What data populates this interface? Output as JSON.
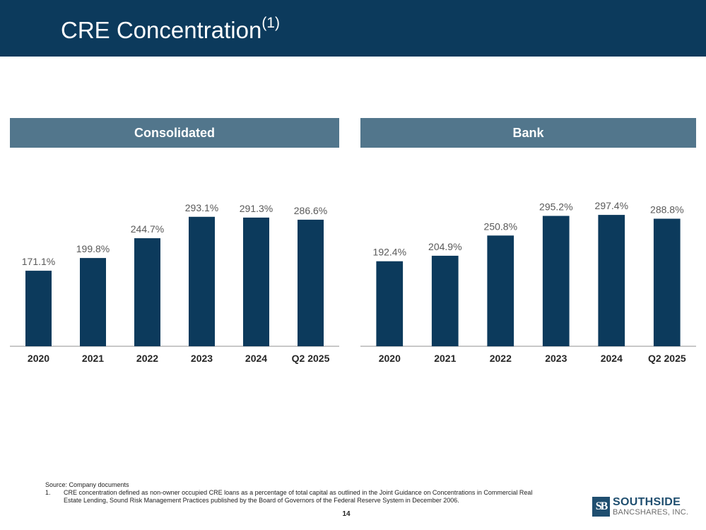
{
  "header": {
    "title": "CRE Concentration",
    "title_superscript": "(1)"
  },
  "colors": {
    "header_background": "#0c3a5c",
    "panel_header_background": "#52768c",
    "bar_fill": "#0c3a5c"
  },
  "chart_data": [
    {
      "type": "bar",
      "title": "Consolidated",
      "categories": [
        "2020",
        "2021",
        "2022",
        "2023",
        "2024",
        "Q2 2025"
      ],
      "values": [
        171.1,
        199.8,
        244.7,
        293.1,
        291.3,
        286.6
      ],
      "data_labels": [
        "171.1%",
        "199.8%",
        "244.7%",
        "293.1%",
        "291.3%",
        "286.6%"
      ],
      "ylim": [
        0,
        320
      ],
      "grid": false,
      "legend": "none"
    },
    {
      "type": "bar",
      "title": "Bank",
      "categories": [
        "2020",
        "2021",
        "2022",
        "2023",
        "2024",
        "Q2 2025"
      ],
      "values": [
        192.4,
        204.9,
        250.8,
        295.2,
        297.4,
        288.8
      ],
      "data_labels": [
        "192.4%",
        "204.9%",
        "250.8%",
        "295.2%",
        "297.4%",
        "288.8%"
      ],
      "ylim": [
        0,
        320
      ],
      "grid": false,
      "legend": "none"
    }
  ],
  "footnotes": {
    "source": "Source: Company documents",
    "items": [
      {
        "number": "1.",
        "text": "CRE concentration defined as non-owner occupied CRE loans as a percentage of total capital as outlined in the Joint Guidance on Concentrations in Commercial Real Estate Lending, Sound Risk Management Practices published by the Board of Governors of the Federal Reserve System in December 2006."
      }
    ]
  },
  "page_number": "14",
  "logo": {
    "mark": "SB",
    "line1": "SOUTHSIDE",
    "line2": "BANCSHARES, INC."
  }
}
